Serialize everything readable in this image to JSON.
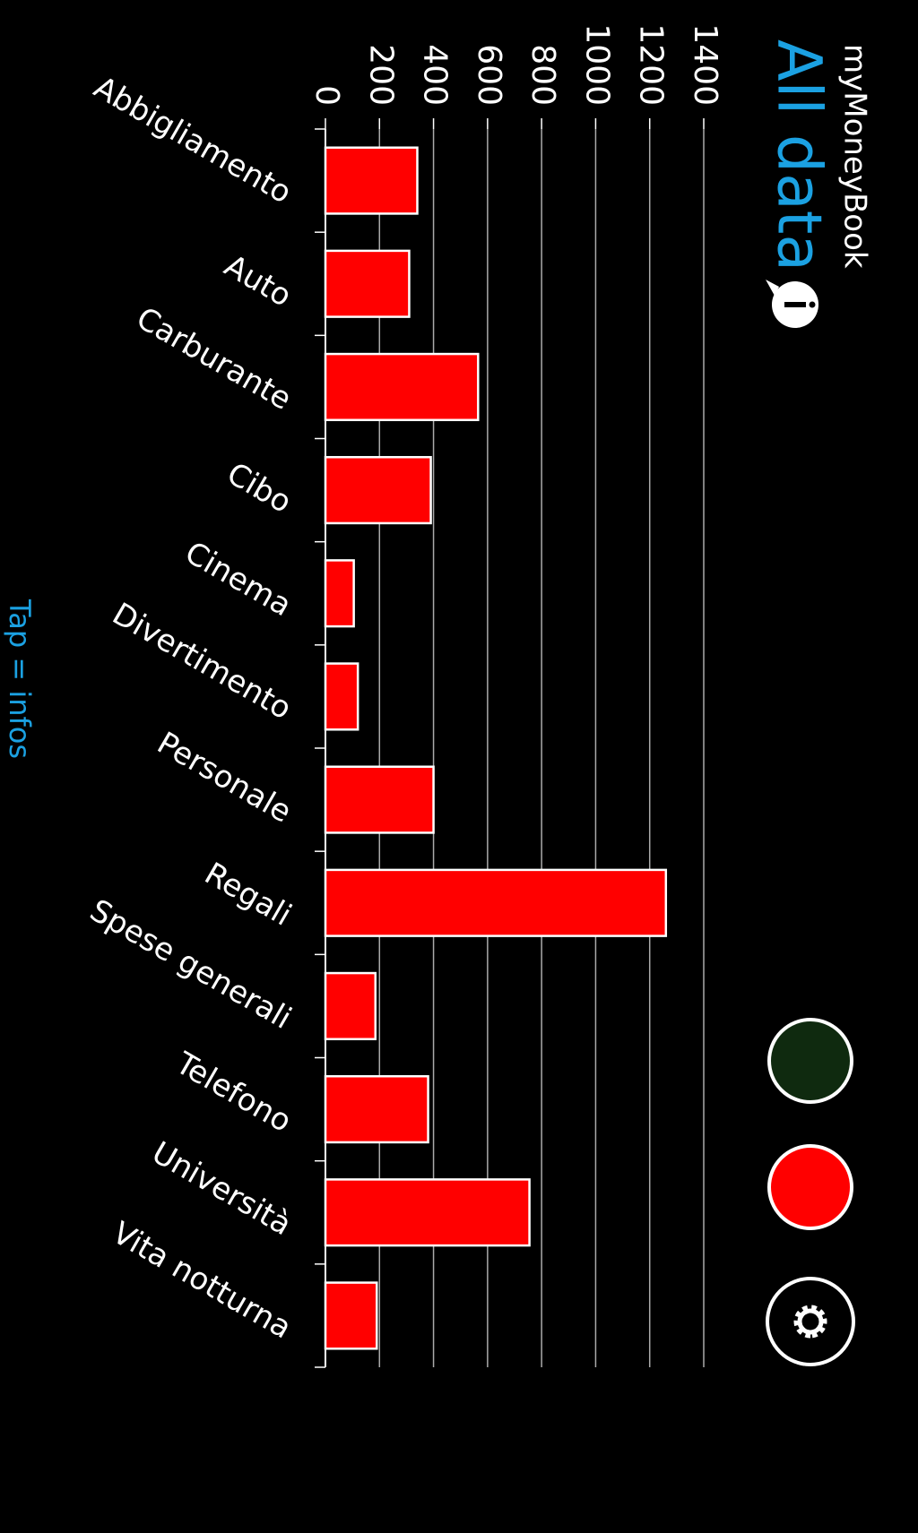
{
  "header": {
    "app": "myMoneyBook",
    "title": "All data"
  },
  "footer": "Tap = infos",
  "chart_data": {
    "type": "bar",
    "categories": [
      "Abbigliamento",
      "Auto",
      "Carburante",
      "Cibo",
      "Cinema",
      "Divertimento",
      "Personale",
      "Regali",
      "Spese generali",
      "Telefono",
      "Università",
      "Vita notturna"
    ],
    "values": [
      340,
      310,
      565,
      390,
      105,
      120,
      400,
      1260,
      185,
      380,
      755,
      190
    ],
    "color": "#ff0000",
    "ylim": [
      0,
      1400
    ],
    "yticks": [
      0,
      200,
      400,
      600,
      800,
      1000,
      1200,
      1400
    ],
    "grid": true
  }
}
